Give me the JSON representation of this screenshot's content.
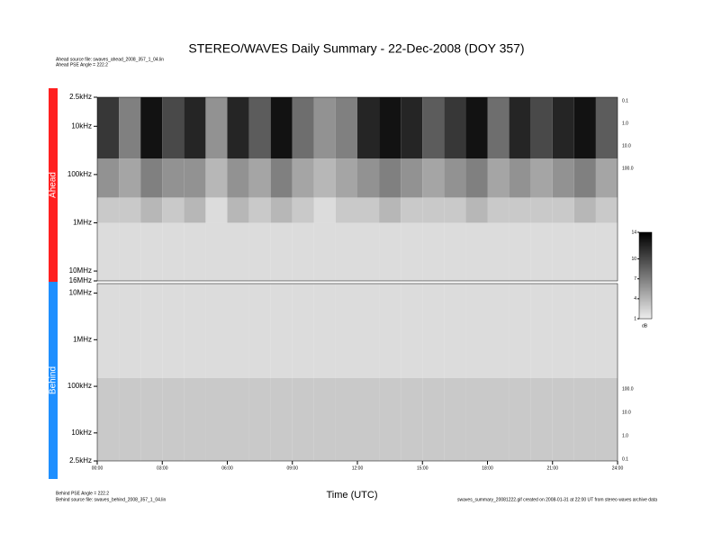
{
  "chart_data": {
    "type": "spectrogram",
    "title": "STEREO/WAVES Daily Summary - 22-Dec-2008 (DOY 357)",
    "header_lines": [
      "Ahead source file: swaves_ahead_2008_357_1_04.lin",
      "Ahead PSE Angle = 222.2"
    ],
    "footer_lines": [
      "Behind PSE Angle = 222.2",
      "Behind source file: swaves_behind_2008_357_1_04.lin"
    ],
    "footer_note": "swaves_summary_20081222.gif created on 2008-01-31 at 22:00 UT from stereo waves archive data",
    "x_label": "Time (UTC)",
    "xlim": [
      0,
      24
    ],
    "xticks": [
      {
        "value": 0,
        "label": "00:00"
      },
      {
        "value": 3,
        "label": "03:00"
      },
      {
        "value": 6,
        "label": "06:00"
      },
      {
        "value": 9,
        "label": "09:00"
      },
      {
        "value": 12,
        "label": "12:00"
      },
      {
        "value": 15,
        "label": "15:00"
      },
      {
        "value": 18,
        "label": "18:00"
      },
      {
        "value": 21,
        "label": "21:00"
      },
      {
        "value": 24,
        "label": "24:00"
      }
    ],
    "time_bins": [
      0,
      1,
      2,
      3,
      4,
      5,
      6,
      7,
      8,
      9,
      10,
      11,
      12,
      13,
      14,
      15,
      16,
      17,
      18,
      19,
      20,
      21,
      22,
      23,
      24
    ],
    "log_y": true,
    "clim": [
      1,
      14
    ],
    "cticks": [
      1,
      4,
      7,
      10,
      14
    ],
    "clabel": "dB",
    "panels": [
      {
        "name": "Ahead",
        "color": "#ff2020",
        "reverse": true,
        "ylim": [
          2.5,
          16000
        ],
        "yticks": [
          {
            "value": 2.5,
            "label": "2.5kHz"
          },
          {
            "value": 10,
            "label": "10kHz"
          },
          {
            "value": 100,
            "label": "100kHz"
          },
          {
            "value": 1000,
            "label": "1MHz"
          },
          {
            "value": 10000,
            "label": "10MHz"
          },
          {
            "value": 16000,
            "label": "16MHz"
          }
        ],
        "right_labels": [
          "0.1",
          "1.0",
          "10.0",
          "100.0"
        ],
        "bands": [
          2.5,
          47,
          300,
          1000,
          16000
        ],
        "values": [
          [
            11,
            7,
            13,
            10,
            12,
            6,
            12,
            9,
            13,
            8,
            6,
            7,
            12,
            13,
            12,
            9,
            11,
            13,
            8,
            12,
            10,
            12,
            13,
            9
          ],
          [
            6,
            5,
            7,
            6,
            6,
            4,
            6,
            5,
            7,
            5,
            4,
            5,
            6,
            7,
            6,
            5,
            6,
            7,
            5,
            6,
            5,
            6,
            7,
            5
          ],
          [
            3,
            3,
            4,
            3,
            4,
            2,
            4,
            3,
            4,
            3,
            2,
            3,
            3,
            4,
            3,
            3,
            3,
            4,
            3,
            3,
            3,
            3,
            4,
            3
          ],
          [
            2,
            2,
            2,
            2,
            2,
            2,
            2,
            2,
            2,
            2,
            2,
            2,
            2,
            2,
            2,
            2,
            2,
            2,
            2,
            2,
            2,
            2,
            2,
            2
          ]
        ]
      },
      {
        "name": "Behind",
        "color": "#1e8fff",
        "reverse": false,
        "ylim": [
          2.5,
          16000
        ],
        "yticks": [
          {
            "value": 2.5,
            "label": "2.5kHz"
          },
          {
            "value": 10,
            "label": "10kHz"
          },
          {
            "value": 100,
            "label": "100kHz"
          },
          {
            "value": 1000,
            "label": "1MHz"
          },
          {
            "value": 10000,
            "label": "10MHz"
          }
        ],
        "right_labels": [
          "100.0",
          "10.0",
          "1.0",
          "0.1"
        ],
        "bands": [
          2.5,
          150,
          16000
        ],
        "values": [
          [
            3,
            3,
            3,
            3,
            3,
            3,
            3,
            3,
            3,
            3,
            3,
            3,
            3,
            3,
            3,
            3,
            3,
            3,
            3,
            3,
            3,
            3,
            3,
            3
          ],
          [
            2,
            2,
            2,
            2,
            2,
            2,
            2,
            2,
            2,
            2,
            2,
            2,
            2,
            2,
            2,
            2,
            2,
            2,
            2,
            2,
            2,
            2,
            2,
            2
          ]
        ]
      }
    ]
  }
}
